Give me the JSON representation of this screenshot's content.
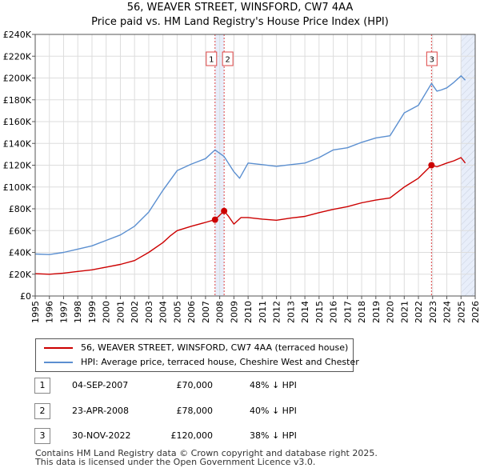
{
  "title": "56, WEAVER STREET, WINSFORD, CW7 4AA",
  "subtitle": "Price paid vs. HM Land Registry's House Price Index (HPI)",
  "colors": {
    "price": "#cc0000",
    "hpi": "#5b8fd0",
    "grid": "#dddddd",
    "marker_line": "#dd4444",
    "shade": "#e8eefa"
  },
  "chart_data": {
    "type": "line",
    "x_range": [
      1995,
      2026
    ],
    "y_range": [
      0,
      240000
    ],
    "y_ticks": [
      0,
      20000,
      40000,
      60000,
      80000,
      100000,
      120000,
      140000,
      160000,
      180000,
      200000,
      220000,
      240000
    ],
    "y_tick_labels": [
      "£0",
      "£20K",
      "£40K",
      "£60K",
      "£80K",
      "£100K",
      "£120K",
      "£140K",
      "£160K",
      "£180K",
      "£200K",
      "£220K",
      "£240K"
    ],
    "x_ticks": [
      1995,
      1996,
      1997,
      1998,
      1999,
      2000,
      2001,
      2002,
      2003,
      2004,
      2005,
      2006,
      2007,
      2008,
      2009,
      2010,
      2011,
      2012,
      2013,
      2014,
      2015,
      2016,
      2017,
      2018,
      2019,
      2020,
      2021,
      2022,
      2023,
      2024,
      2025,
      2026
    ],
    "x_tick_labels": [
      "1995",
      "1996",
      "1997",
      "1998",
      "1999",
      "2000",
      "2001",
      "2002",
      "2003",
      "2004",
      "2005",
      "2006",
      "2007",
      "2008",
      "2009",
      "2010",
      "2011",
      "2012",
      "2013",
      "2014",
      "2015",
      "2016",
      "2017",
      "2018",
      "2019",
      "2020",
      "2021",
      "2022",
      "2023",
      "2024",
      "2025",
      "2026"
    ],
    "shaded_ranges": [
      [
        2007.67,
        2008.31
      ],
      [
        2025.0,
        2026.0
      ]
    ],
    "hatched_range": [
      2025.0,
      2026.0
    ],
    "series": [
      {
        "name": "56, WEAVER STREET, WINSFORD, CW7 4AA (terraced house)",
        "x": [
          1995,
          1996,
          1997,
          1998,
          1999,
          2000,
          2001,
          2002,
          2003,
          2004,
          2004.5,
          2005,
          2006,
          2007,
          2007.67,
          2008.31,
          2008.6,
          2009,
          2009.5,
          2010,
          2011,
          2012,
          2013,
          2014,
          2015,
          2016,
          2017,
          2018,
          2019,
          2020,
          2021,
          2022,
          2022.92,
          2023.3,
          2024,
          2024.5,
          2025.0,
          2025.3
        ],
        "values": [
          20500,
          20000,
          21000,
          22500,
          24000,
          26500,
          29000,
          32500,
          40000,
          49000,
          55000,
          60000,
          64000,
          67500,
          70000,
          78000,
          73500,
          66000,
          72000,
          72000,
          70500,
          69500,
          71500,
          73000,
          76500,
          79500,
          82000,
          85500,
          88000,
          90000,
          100000,
          108000,
          120000,
          118500,
          122000,
          124000,
          127000,
          122000
        ]
      },
      {
        "name": "HPI: Average price, terraced house, Cheshire West and Chester",
        "x": [
          1995,
          1996,
          1997,
          1998,
          1999,
          2000,
          2001,
          2002,
          2003,
          2004,
          2005,
          2006,
          2007,
          2007.67,
          2008.31,
          2009,
          2009.4,
          2010,
          2011,
          2012,
          2013,
          2014,
          2015,
          2016,
          2017,
          2018,
          2019,
          2020,
          2021,
          2022,
          2022.92,
          2023.3,
          2023.6,
          2024,
          2024.5,
          2025.0,
          2025.3
        ],
        "values": [
          38500,
          38000,
          40000,
          43000,
          46000,
          51000,
          56000,
          64000,
          77000,
          97000,
          115000,
          121000,
          126000,
          134000,
          128000,
          114000,
          108000,
          122000,
          120500,
          119000,
          120500,
          122000,
          127000,
          134000,
          136000,
          141000,
          145000,
          147000,
          168000,
          175000,
          195000,
          188000,
          189000,
          191000,
          196000,
          202000,
          198000
        ]
      }
    ],
    "markers": [
      {
        "label": "1",
        "x": 2007.67,
        "y": 70000
      },
      {
        "label": "2",
        "x": 2008.31,
        "y": 78000
      },
      {
        "label": "3",
        "x": 2022.92,
        "y": 120000
      }
    ]
  },
  "legend": {
    "price_label": "56, WEAVER STREET, WINSFORD, CW7 4AA (terraced house)",
    "hpi_label": "HPI: Average price, terraced house, Cheshire West and Chester"
  },
  "transactions": [
    {
      "num": "1",
      "date": "04-SEP-2007",
      "price": "£70,000",
      "hpi": "48% ↓ HPI"
    },
    {
      "num": "2",
      "date": "23-APR-2008",
      "price": "£78,000",
      "hpi": "40% ↓ HPI"
    },
    {
      "num": "3",
      "date": "30-NOV-2022",
      "price": "£120,000",
      "hpi": "38% ↓ HPI"
    }
  ],
  "footer": {
    "line1": "Contains HM Land Registry data © Crown copyright and database right 2025.",
    "line2": "This data is licensed under the Open Government Licence v3.0."
  }
}
